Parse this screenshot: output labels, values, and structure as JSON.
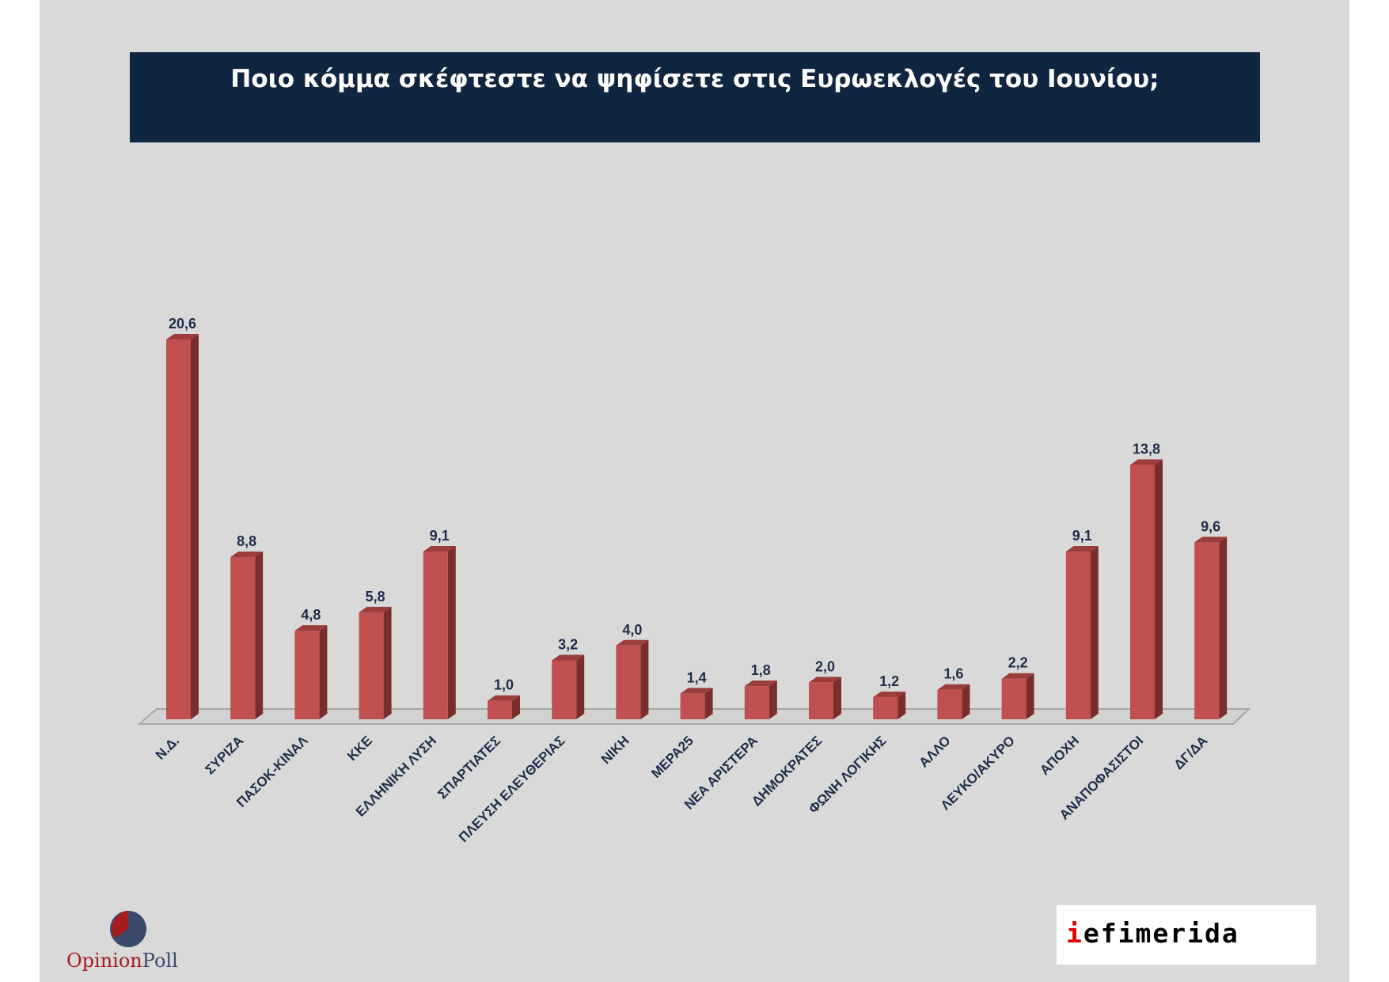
{
  "title": "Ποιο κόμμα σκέφτεστε να ψηφίσετε στις Ευρωεκλογές του Ιουνίου;",
  "colors": {
    "bar_front": "#c0504d",
    "bar_side": "#7a2e2c",
    "bar_top": "#9b3d3a",
    "label": "#1f2d4a",
    "title_bg": "#102640",
    "slide_bg": "#d9d9d9"
  },
  "logos": {
    "opinionpoll": {
      "part1": "Opinion",
      "part2": "Poll"
    },
    "iefimerida": {
      "part1": "i",
      "part2": "efimerida"
    }
  },
  "chart_data": {
    "type": "bar",
    "title": "Ποιο κόμμα σκέφτεστε να ψηφίσετε στις Ευρωεκλογές του Ιουνίου;",
    "xlabel": "",
    "ylabel": "",
    "ylim": [
      0,
      22
    ],
    "grid": false,
    "legend": "none",
    "categories": [
      "Ν.Δ.",
      "ΣΥΡΙΖΑ",
      "ΠΑΣΟΚ-ΚΙΝΑΛ",
      "ΚΚΕ",
      "ΕΛΛΗΝΙΚΗ ΛΥΣΗ",
      "ΣΠΑΡΤΙΑΤΕΣ",
      "ΠΛΕΥΣΗ ΕΛΕΥΘΕΡΙΑΣ",
      "ΝΙΚΗ",
      "ΜΕΡΑ25",
      "ΝΕΑ ΑΡΙΣΤΕΡΑ",
      "ΔΗΜΟΚΡΑΤΕΣ",
      "ΦΩΝΗ ΛΟΓΙΚΗΣ",
      "ΑΛΛΟ",
      "ΛΕΥΚΟ/ΑΚΥΡΟ",
      "ΑΠΟΧΗ",
      "ΑΝΑΠΟΦΑΣΙΣΤΟΙ",
      "ΔΓ/ΔΑ"
    ],
    "values": [
      20.6,
      8.8,
      4.8,
      5.8,
      9.1,
      1.0,
      3.2,
      4.0,
      1.4,
      1.8,
      2.0,
      1.2,
      1.6,
      2.2,
      9.1,
      13.8,
      9.6
    ],
    "value_labels": [
      "20,6",
      "8,8",
      "4,8",
      "5,8",
      "9,1",
      "1,0",
      "3,2",
      "4,0",
      "1,4",
      "1,8",
      "2,0",
      "1,2",
      "1,6",
      "2,2",
      "9,1",
      "13,8",
      "9,6"
    ]
  }
}
